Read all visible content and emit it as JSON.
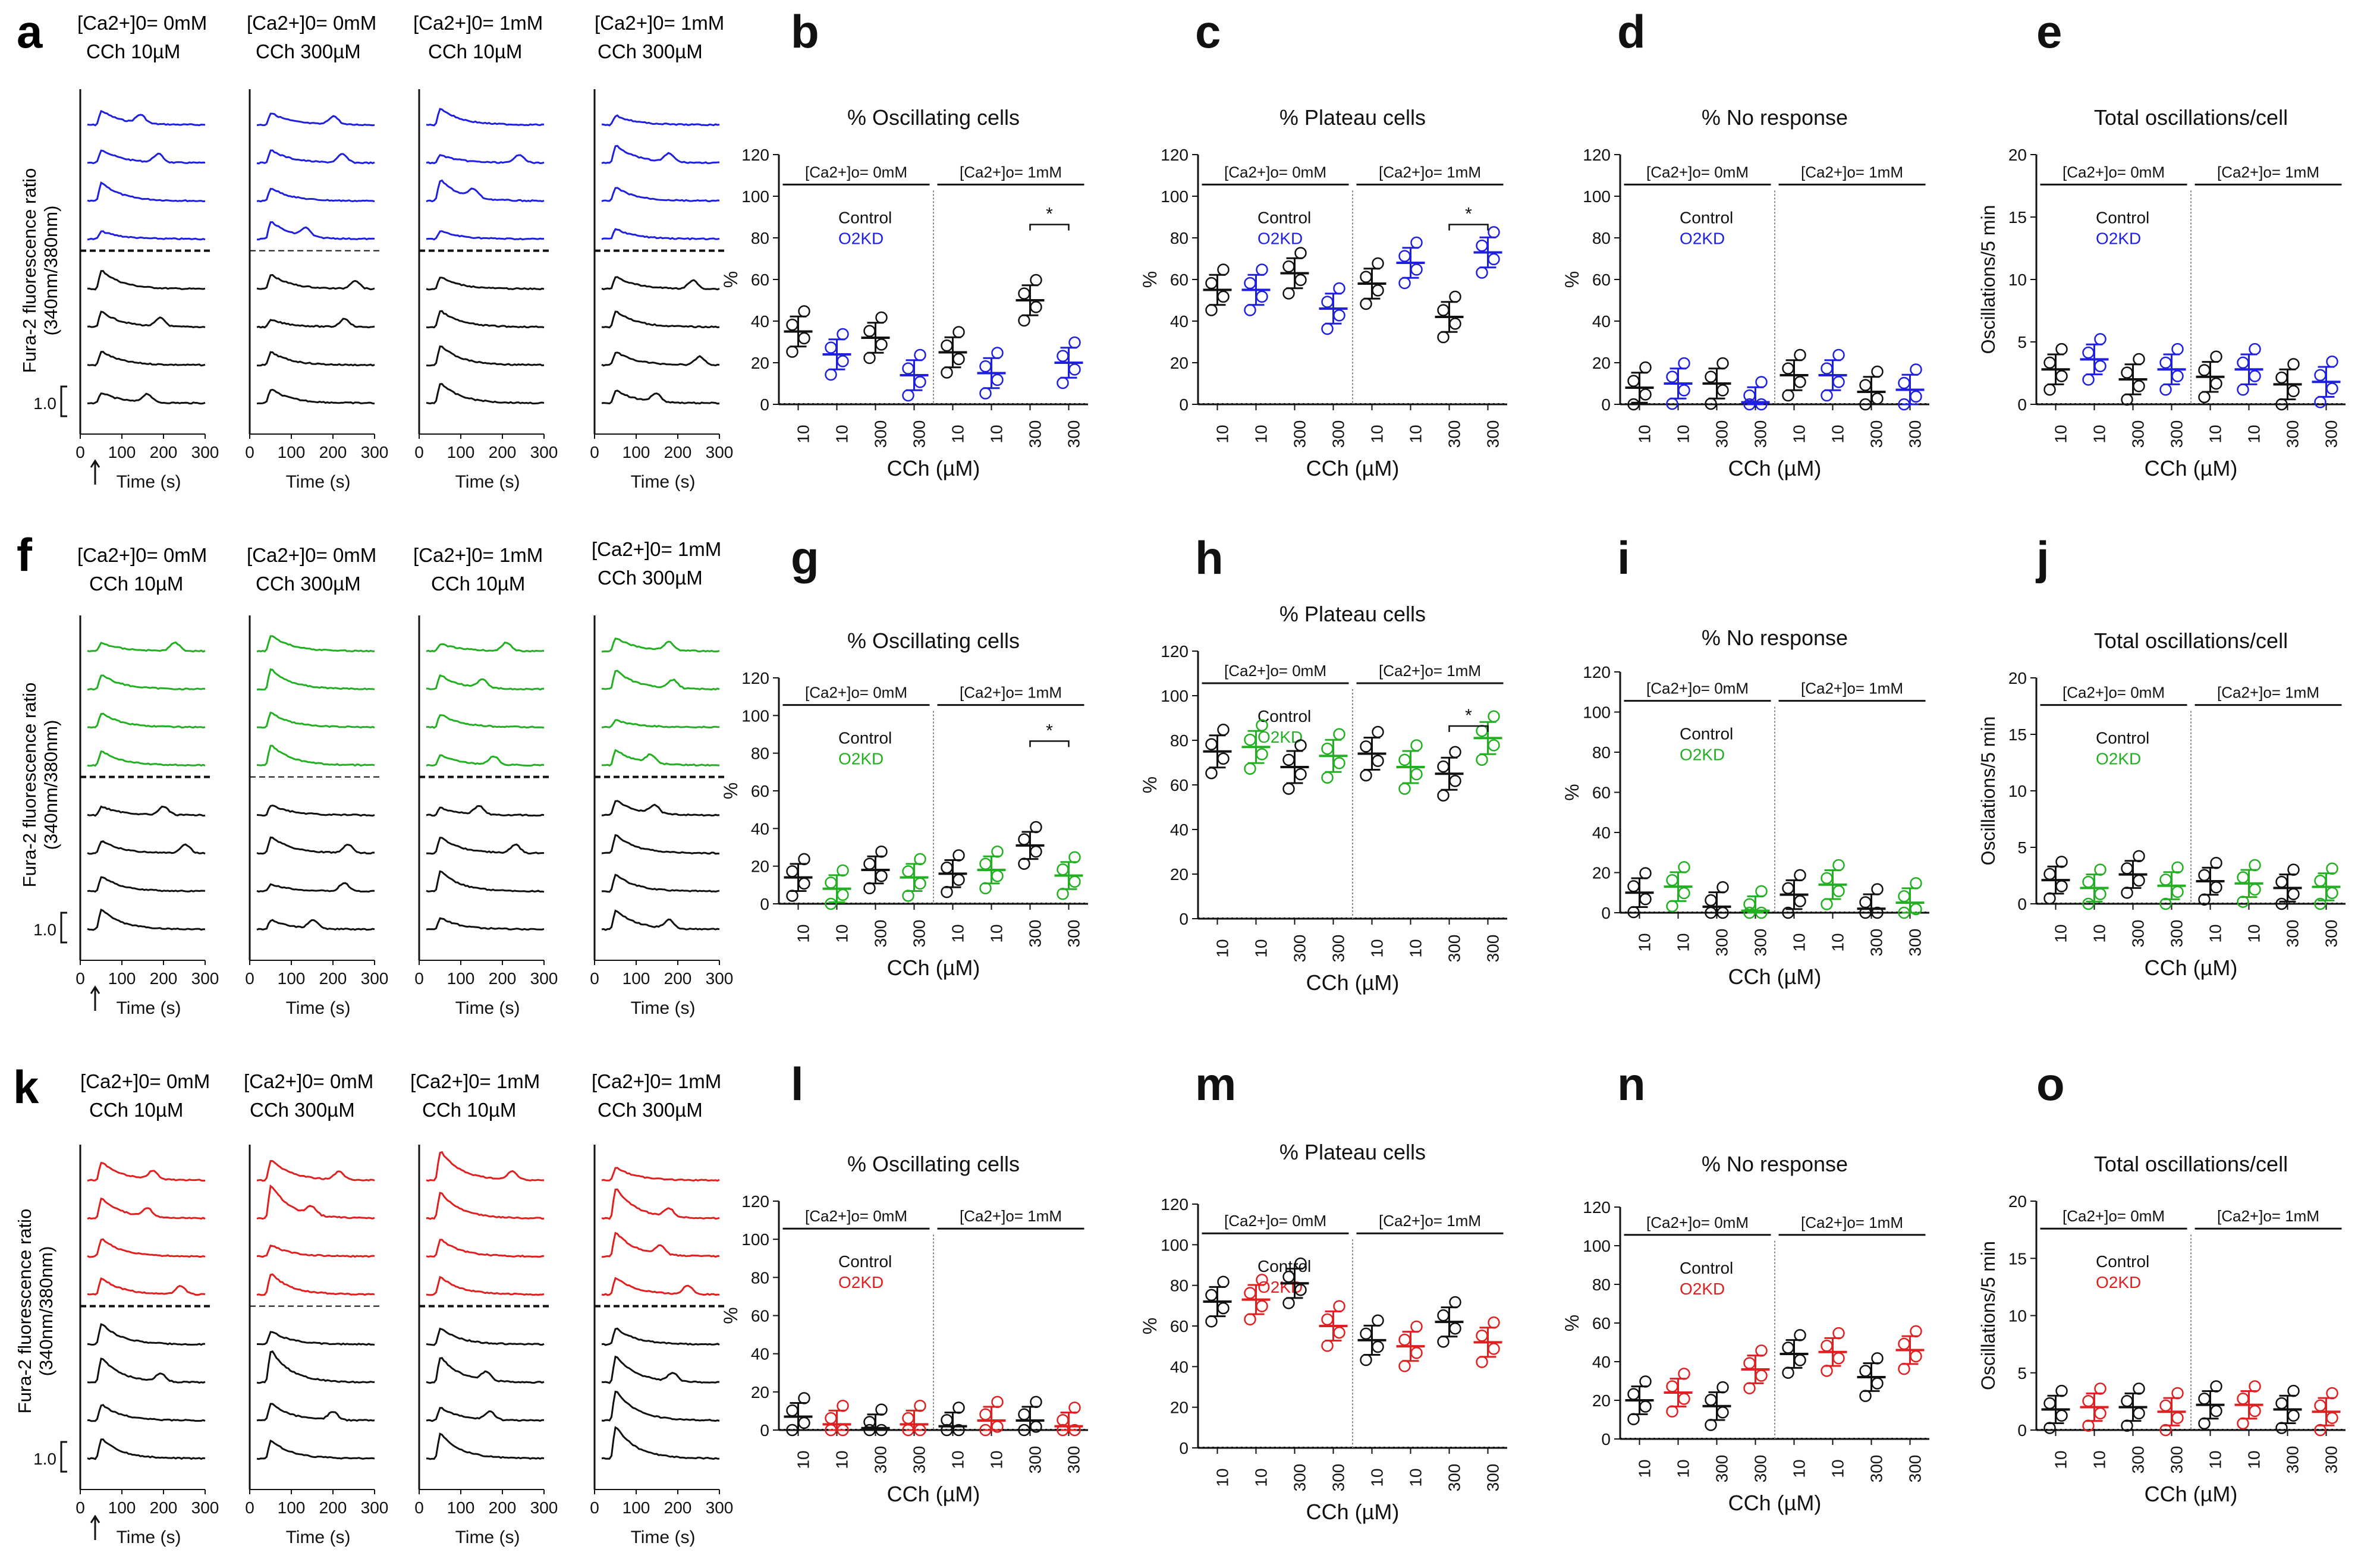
{
  "colors": {
    "control": "#111111",
    "o2kd_row1": "#1f1fe0",
    "o2kd_row2": "#22b022",
    "o2kd_row3": "#e02020"
  },
  "common": {
    "trace_ylabel": "Fura-2 fluorescence ratio (340nm/380nm)",
    "trace_ylabel_l1": "Fura-2 fluorescence ratio",
    "trace_ylabel_l2": "(340nm/380nm)",
    "time_label": "Time (s)",
    "scale_label": "1.0",
    "time_ticks": [
      "0",
      "100",
      "200",
      "300"
    ],
    "xcats": [
      "10",
      "10",
      "300",
      "300",
      "10",
      "10",
      "300",
      "300"
    ],
    "xlabel": "CCh (µM)",
    "pct_ylabel": "%",
    "osc_ylabel": "Oscillations/5 min",
    "group_0mM": "[Ca2+]o= 0mM",
    "group_1mM": "[Ca2+]o= 1mM",
    "legend_control": "Control",
    "legend_o2kd": "O2KD",
    "star": "*"
  },
  "rows": [
    {
      "trace_letter": "a",
      "conditions": [
        {
          "ca": "[Ca2+]0= 0mM",
          "cch": "CCh 10µM"
        },
        {
          "ca": "[Ca2+]0= 0mM",
          "cch": "CCh 300µM"
        },
        {
          "ca": "[Ca2+]0= 1mM",
          "cch": "CCh 10µM"
        },
        {
          "ca": "[Ca2+]0= 1mM",
          "cch": "CCh 300µM"
        }
      ]
    },
    {
      "trace_letter": "f",
      "conditions": [
        {
          "ca": "[Ca2+]0= 0mM",
          "cch": "CCh 10µM"
        },
        {
          "ca": "[Ca2+]0= 0mM",
          "cch": "CCh 300µM"
        },
        {
          "ca": "[Ca2+]0= 1mM",
          "cch": "CCh 10µM"
        },
        {
          "ca": "[Ca2+]0= 1mM",
          "cch": "CCh 300µM"
        }
      ]
    },
    {
      "trace_letter": "k",
      "conditions": [
        {
          "ca": "[Ca2+]0= 0mM",
          "cch": "CCh 10µM"
        },
        {
          "ca": "[Ca2+]0= 0mM",
          "cch": "CCh 300µM"
        },
        {
          "ca": "[Ca2+]0= 1mM",
          "cch": "CCh 10µM"
        },
        {
          "ca": "[Ca2+]0= 1mM",
          "cch": "CCh 300µM"
        }
      ]
    }
  ],
  "chart_data": [
    {
      "letter": "b",
      "type": "scatter",
      "title": "% Oscillating cells",
      "ylim": [
        0,
        120
      ],
      "yticks": [
        0,
        20,
        40,
        60,
        80,
        100,
        120
      ],
      "ylabel": "%",
      "series": [
        {
          "name": "Control",
          "means": [
            35,
            null,
            32,
            null,
            25,
            null,
            50,
            null
          ]
        },
        {
          "name": "O2KD",
          "means": [
            null,
            24,
            null,
            14,
            null,
            15,
            null,
            20
          ]
        }
      ],
      "significance": "300 vs 300 (1mM)"
    },
    {
      "letter": "c",
      "type": "scatter",
      "title": "% Plateau cells",
      "ylim": [
        0,
        120
      ],
      "yticks": [
        0,
        20,
        40,
        60,
        80,
        100,
        120
      ],
      "ylabel": "%",
      "series": [
        {
          "name": "Control",
          "means": [
            55,
            null,
            63,
            null,
            58,
            null,
            42,
            null
          ]
        },
        {
          "name": "O2KD",
          "means": [
            null,
            55,
            null,
            46,
            null,
            68,
            null,
            73
          ]
        }
      ],
      "significance": "300 vs 300 (1mM)"
    },
    {
      "letter": "d",
      "type": "scatter",
      "title": "% No response",
      "ylim": [
        0,
        120
      ],
      "yticks": [
        0,
        20,
        40,
        60,
        80,
        100,
        120
      ],
      "ylabel": "%",
      "series": [
        {
          "name": "Control",
          "means": [
            8,
            null,
            10,
            null,
            14,
            null,
            6,
            null
          ]
        },
        {
          "name": "O2KD",
          "means": [
            null,
            10,
            null,
            1,
            null,
            14,
            null,
            7
          ]
        }
      ]
    },
    {
      "letter": "e",
      "type": "scatter",
      "title": "Total oscillations/cell",
      "ylim": [
        0,
        20
      ],
      "yticks": [
        0,
        5,
        10,
        15,
        20
      ],
      "ylabel": "Oscillations/5 min",
      "series": [
        {
          "name": "Control",
          "means": [
            2.8,
            null,
            2,
            null,
            2.2,
            null,
            1.6,
            null
          ]
        },
        {
          "name": "O2KD",
          "means": [
            null,
            3.6,
            null,
            2.8,
            null,
            2.8,
            null,
            1.8
          ]
        }
      ]
    },
    {
      "letter": "g",
      "type": "scatter",
      "title": "% Oscillating cells",
      "ylim": [
        0,
        120
      ],
      "yticks": [
        0,
        20,
        40,
        60,
        80,
        100,
        120
      ],
      "ylabel": "%",
      "series": [
        {
          "name": "Control",
          "means": [
            14,
            null,
            18,
            null,
            16,
            null,
            31,
            null
          ]
        },
        {
          "name": "O2KD",
          "means": [
            null,
            8,
            null,
            14,
            null,
            18,
            null,
            15
          ]
        }
      ],
      "significance": "300 vs 300 (1mM)"
    },
    {
      "letter": "h",
      "type": "scatter",
      "title": "% Plateau cells",
      "ylim": [
        0,
        120
      ],
      "yticks": [
        0,
        20,
        40,
        60,
        80,
        100,
        120
      ],
      "ylabel": "%",
      "series": [
        {
          "name": "Control",
          "means": [
            75,
            null,
            68,
            null,
            74,
            null,
            65,
            null
          ]
        },
        {
          "name": "O2KD",
          "means": [
            null,
            77,
            null,
            73,
            null,
            68,
            null,
            81
          ]
        }
      ],
      "significance": "300 vs 300 (1mM)"
    },
    {
      "letter": "i",
      "type": "scatter",
      "title": "% No response",
      "ylim": [
        0,
        120
      ],
      "yticks": [
        0,
        20,
        40,
        60,
        80,
        100,
        120
      ],
      "ylabel": "%",
      "series": [
        {
          "name": "Control",
          "means": [
            10,
            null,
            3,
            null,
            9,
            null,
            2,
            null
          ]
        },
        {
          "name": "O2KD",
          "means": [
            null,
            13,
            null,
            1,
            null,
            14,
            null,
            5
          ]
        }
      ]
    },
    {
      "letter": "j",
      "type": "scatter",
      "title": "Total oscillations/cell",
      "ylim": [
        0,
        20
      ],
      "yticks": [
        0,
        5,
        10,
        15,
        20
      ],
      "ylabel": "Oscillations/5 min",
      "series": [
        {
          "name": "Control",
          "means": [
            2.1,
            null,
            2.6,
            null,
            2,
            null,
            1.4,
            null
          ]
        },
        {
          "name": "O2KD",
          "means": [
            null,
            1.4,
            null,
            1.6,
            null,
            1.8,
            null,
            1.5
          ]
        }
      ]
    },
    {
      "letter": "l",
      "type": "scatter",
      "title": "% Oscillating cells",
      "ylim": [
        0,
        120
      ],
      "yticks": [
        0,
        20,
        40,
        60,
        80,
        100,
        120
      ],
      "ylabel": "%",
      "series": [
        {
          "name": "Control",
          "means": [
            7,
            null,
            1,
            null,
            2,
            null,
            5,
            null
          ]
        },
        {
          "name": "O2KD",
          "means": [
            null,
            3,
            null,
            3,
            null,
            5,
            null,
            2
          ]
        }
      ]
    },
    {
      "letter": "m",
      "type": "scatter",
      "title": "% Plateau cells",
      "ylim": [
        0,
        120
      ],
      "yticks": [
        0,
        20,
        40,
        60,
        80,
        100,
        120
      ],
      "ylabel": "%",
      "series": [
        {
          "name": "Control",
          "means": [
            72,
            null,
            81,
            null,
            53,
            null,
            62,
            null
          ]
        },
        {
          "name": "O2KD",
          "means": [
            null,
            73,
            null,
            60,
            null,
            50,
            null,
            52
          ]
        }
      ]
    },
    {
      "letter": "n",
      "type": "scatter",
      "title": "% No response",
      "ylim": [
        0,
        120
      ],
      "yticks": [
        0,
        20,
        40,
        60,
        80,
        100,
        120
      ],
      "ylabel": "%",
      "series": [
        {
          "name": "Control",
          "means": [
            20,
            null,
            17,
            null,
            44,
            null,
            32,
            null
          ]
        },
        {
          "name": "O2KD",
          "means": [
            null,
            24,
            null,
            36,
            null,
            45,
            null,
            46
          ]
        }
      ]
    },
    {
      "letter": "o",
      "type": "scatter",
      "title": "Total oscillations/cell",
      "ylim": [
        0,
        20
      ],
      "yticks": [
        0,
        5,
        10,
        15,
        20
      ],
      "ylabel": "Oscillations/5 min",
      "series": [
        {
          "name": "Control",
          "means": [
            1.8,
            null,
            2,
            null,
            2.2,
            null,
            1.8,
            null
          ]
        },
        {
          "name": "O2KD",
          "means": [
            null,
            2,
            null,
            1.6,
            null,
            2.2,
            null,
            1.6
          ]
        }
      ]
    }
  ]
}
